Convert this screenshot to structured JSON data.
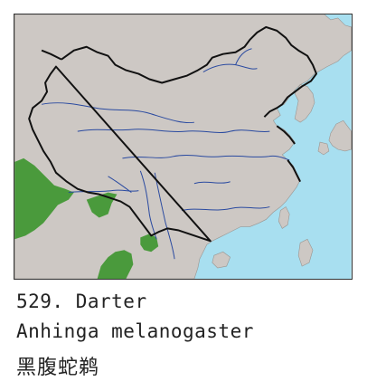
{
  "species": {
    "number": "529.",
    "common_name": "Darter",
    "scientific_name": "Anhinga melanogaster",
    "chinese_name": "黑腹蛇鹈"
  },
  "colors": {
    "sea": "#a8dff0",
    "land": "#cdc8c4",
    "range": "#4a9a3c",
    "rivers": "#2a4aa0",
    "border": "#111111",
    "frame": "#333333"
  }
}
